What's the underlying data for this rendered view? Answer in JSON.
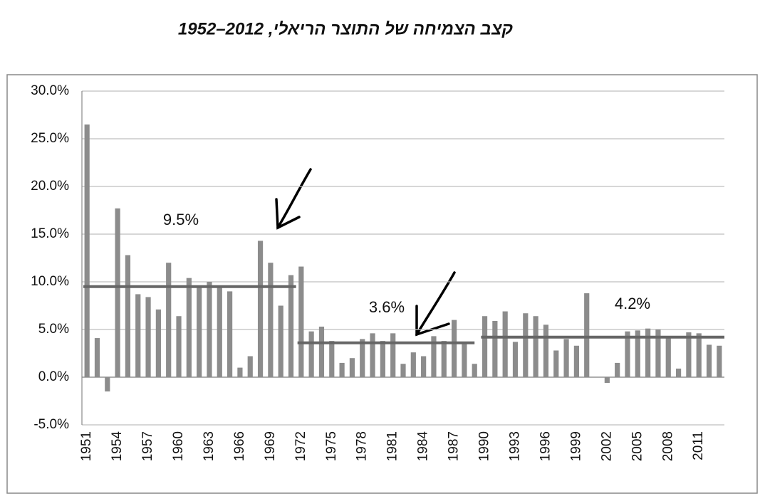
{
  "chart_data": {
    "type": "bar",
    "title": "קצב הצמיחה של התוצר הריאלי, 2012–1952",
    "categories": [
      "1951",
      null,
      null,
      "1954",
      null,
      null,
      "1957",
      null,
      null,
      "1960",
      null,
      null,
      "1963",
      null,
      null,
      "1966",
      null,
      null,
      "1969",
      null,
      null,
      "1972",
      null,
      null,
      "1975",
      null,
      null,
      "1978",
      null,
      null,
      "1981",
      null,
      null,
      "1984",
      null,
      null,
      "1987",
      null,
      null,
      "1990",
      null,
      null,
      "1993",
      null,
      null,
      "1996",
      null,
      null,
      "1999",
      null,
      null,
      "2002",
      null,
      null,
      "2005",
      null,
      null,
      "2008",
      null,
      null,
      "2011",
      null,
      null
    ],
    "values": [
      26.5,
      4.1,
      -1.5,
      17.7,
      12.8,
      8.7,
      8.4,
      7.1,
      12.0,
      6.4,
      10.4,
      9.6,
      10.0,
      9.5,
      9.0,
      1.0,
      2.2,
      14.3,
      12.0,
      7.5,
      10.7,
      11.6,
      4.8,
      5.3,
      3.8,
      1.5,
      2.0,
      4.0,
      4.6,
      3.8,
      4.6,
      1.4,
      2.6,
      2.2,
      4.3,
      3.8,
      6.0,
      3.6,
      1.4,
      6.4,
      5.9,
      6.9,
      3.7,
      6.7,
      6.4,
      5.5,
      2.8,
      4.0,
      3.3,
      8.8,
      0.0,
      -0.6,
      1.5,
      4.8,
      4.9,
      5.1,
      5.0,
      4.1,
      0.9,
      4.7,
      4.6,
      3.4,
      3.3
    ],
    "color": "#8c8c8c",
    "averages": {
      "values": [
        9.5,
        3.6,
        4.2
      ],
      "labels": [
        "9.5%",
        "3.6%",
        "4.2%"
      ],
      "color": "#666666"
    },
    "ylim": [
      -5,
      30
    ],
    "yticks": [
      {
        "value": -5,
        "label": "-5.0%"
      },
      {
        "value": 0,
        "label": "0.0%"
      },
      {
        "value": 5,
        "label": "5.0%"
      },
      {
        "value": 10,
        "label": "10.0%"
      },
      {
        "value": 15,
        "label": "15.0%"
      },
      {
        "value": 20,
        "label": "20.0%"
      },
      {
        "value": 25,
        "label": "25.0%"
      },
      {
        "value": 30,
        "label": "30.0%"
      }
    ],
    "grid": true
  }
}
